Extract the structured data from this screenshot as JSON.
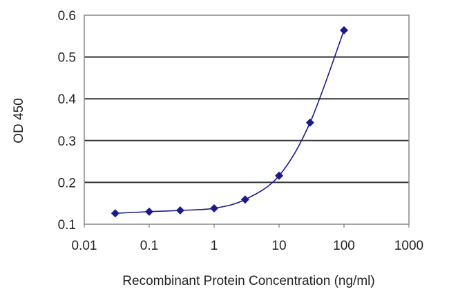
{
  "chart_data": {
    "type": "line",
    "title": "",
    "xlabel": "Recombinant Protein Concentration (ng/ml)",
    "ylabel": "OD 450",
    "x_scale": "log",
    "xlim": [
      0.01,
      1000
    ],
    "ylim": [
      0.1,
      0.6
    ],
    "x_ticks": [
      "0.01",
      "0.1",
      "1",
      "10",
      "100",
      "1000"
    ],
    "y_ticks": [
      "0.1",
      "0.2",
      "0.3",
      "0.4",
      "0.5",
      "0.6"
    ],
    "grid": "horizontal",
    "legend": "none",
    "series": [
      {
        "color": "#1a1a8c",
        "marker": "diamond",
        "x": [
          0.03,
          0.1,
          0.3,
          1,
          3,
          10,
          30,
          100
        ],
        "y": [
          0.126,
          0.13,
          0.133,
          0.138,
          0.159,
          0.216,
          0.343,
          0.564
        ]
      }
    ]
  }
}
